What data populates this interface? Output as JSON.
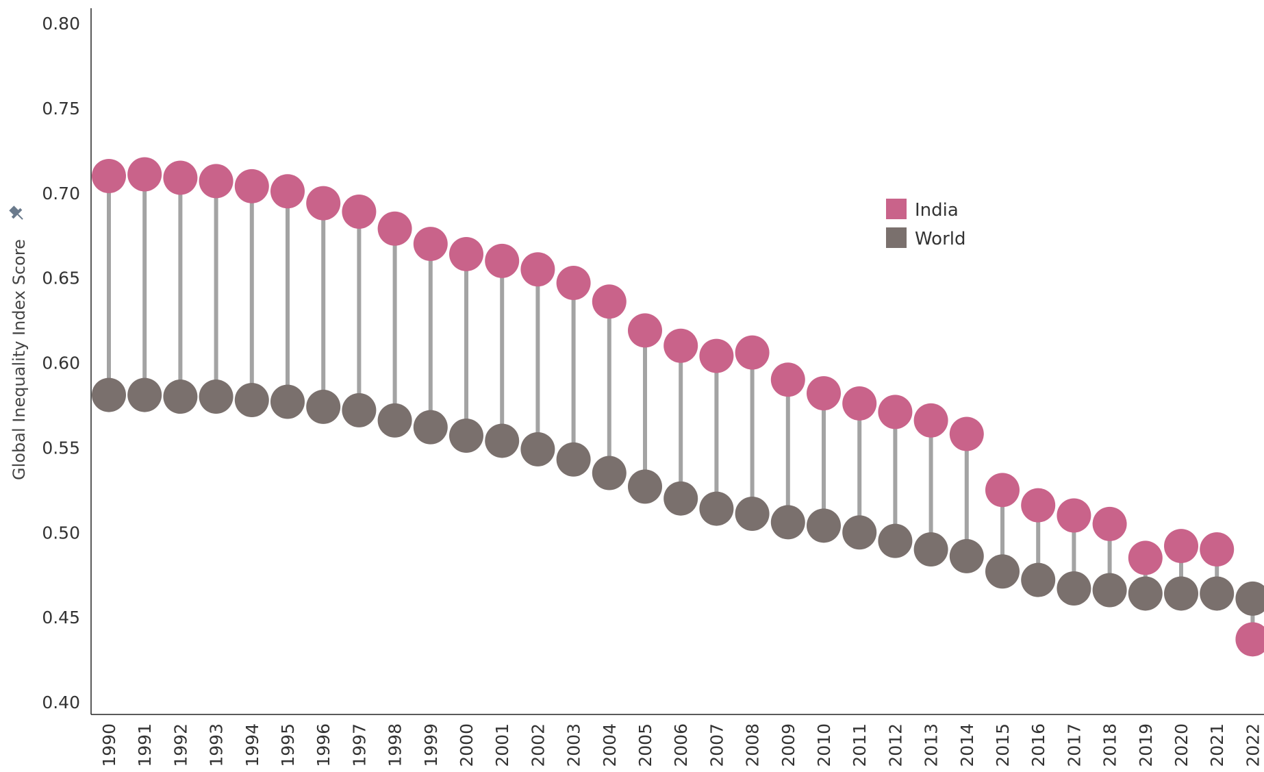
{
  "chart_data": {
    "type": "dumbbell",
    "ylabel": "Global Inequality Index Score",
    "ylim": [
      0.4,
      0.8
    ],
    "yticks": [
      "0.80",
      "0.75",
      "0.70",
      "0.65",
      "0.60",
      "0.55",
      "0.50",
      "0.45",
      "0.40"
    ],
    "legend_position": "top-right",
    "categories": [
      "1990",
      "1991",
      "1992",
      "1993",
      "1994",
      "1995",
      "1996",
      "1997",
      "1998",
      "1999",
      "2000",
      "2001",
      "2002",
      "2003",
      "2004",
      "2005",
      "2006",
      "2007",
      "2008",
      "2009",
      "2010",
      "2011",
      "2012",
      "2013",
      "2014",
      "2015",
      "2016",
      "2017",
      "2018",
      "2019",
      "2020",
      "2021",
      "2022"
    ],
    "series": [
      {
        "name": "India",
        "color": "#c9638a",
        "values": [
          0.71,
          0.711,
          0.709,
          0.707,
          0.704,
          0.701,
          0.694,
          0.689,
          0.679,
          0.67,
          0.664,
          0.66,
          0.655,
          0.647,
          0.636,
          0.619,
          0.61,
          0.604,
          0.606,
          0.59,
          0.582,
          0.576,
          0.571,
          0.566,
          0.558,
          0.525,
          0.516,
          0.51,
          0.505,
          0.485,
          0.492,
          0.49,
          0.437
        ]
      },
      {
        "name": "World",
        "color": "#7a706d",
        "values": [
          0.581,
          0.581,
          0.58,
          0.58,
          0.578,
          0.577,
          0.574,
          0.572,
          0.566,
          0.562,
          0.557,
          0.554,
          0.549,
          0.543,
          0.535,
          0.527,
          0.52,
          0.514,
          0.511,
          0.506,
          0.504,
          0.5,
          0.495,
          0.49,
          0.486,
          0.477,
          0.472,
          0.467,
          0.466,
          0.464,
          0.464,
          0.464,
          0.461
        ]
      }
    ],
    "connector_color": "#a3a3a3",
    "grid": false
  }
}
